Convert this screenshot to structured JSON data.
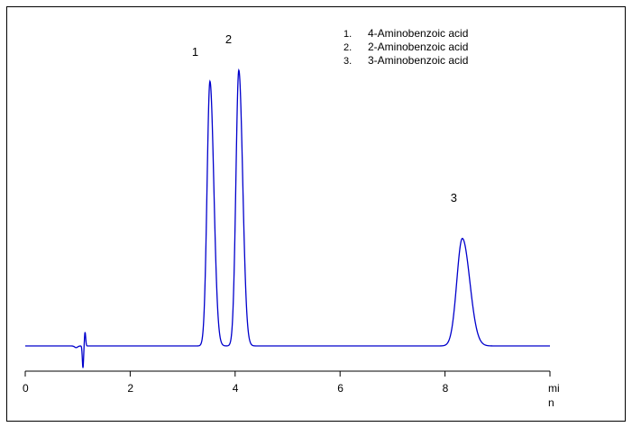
{
  "chart_data": {
    "type": "line",
    "title": "",
    "xlabel": "",
    "ylabel": "",
    "x_unit": "min",
    "x_unit_line1": "mi",
    "x_unit_line2": "n",
    "xlim": [
      0,
      10
    ],
    "ylim": [
      0,
      1
    ],
    "grid": false,
    "x_ticks": [
      0,
      2,
      4,
      6,
      8,
      10
    ],
    "x_tick_labels": [
      "0",
      "2",
      "4",
      "6",
      "8"
    ],
    "colors": {
      "trace": "#0000cc",
      "axis": "#000000",
      "frame": "#000000"
    },
    "legend": [
      {
        "number": "1.",
        "name": "4-Aminobenzoic acid"
      },
      {
        "number": "2.",
        "name": "2-Aminobenzoic acid"
      },
      {
        "number": "3.",
        "name": "3-Aminobenzoic acid"
      }
    ],
    "peaks": [
      {
        "label": "1",
        "retention_time": 3.52,
        "height": 0.96,
        "width": 0.055
      },
      {
        "label": "2",
        "retention_time": 4.07,
        "height": 1.0,
        "width": 0.055
      },
      {
        "label": "3",
        "retention_time": 8.33,
        "height": 0.39,
        "width": 0.105
      }
    ],
    "disturbance": {
      "retention_time": 1.12,
      "up": 0.05,
      "down": -0.08
    }
  }
}
